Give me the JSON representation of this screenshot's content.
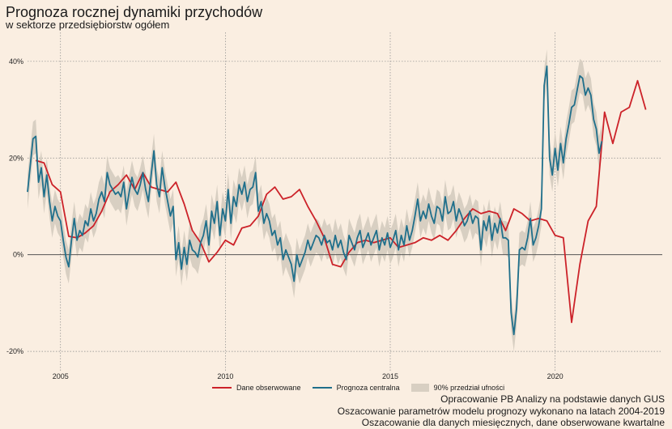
{
  "title": "Prognoza rocznej dynamiki przychodów",
  "subtitle": "w sektorze przedsiębiorstw ogółem",
  "captions": [
    "Opracowanie PB Analizy na podstawie danych GUS",
    "Oszacowanie parametrów modelu prognozy wykonano na latach 2004-2019",
    "Oszacowanie dla danych miesięcznych, dane obserwowane kwartalne"
  ],
  "colors": {
    "background": "#faeee1",
    "observed": "#cc2229",
    "forecast": "#1f6f8b",
    "band": "#d8cfc2",
    "grid": "#8a8a8a",
    "zero_line": "#555555"
  },
  "chart_data": {
    "type": "line",
    "x_unit": "year (decimal)",
    "xlim": [
      2004.0,
      2023.25
    ],
    "ylim": [
      -24,
      46
    ],
    "xticks": [
      2005,
      2010,
      2015,
      2020
    ],
    "xtick_labels": [
      "2005",
      "2010",
      "2015",
      "2020"
    ],
    "yticks": [
      -20,
      0,
      20,
      40
    ],
    "ytick_labels": [
      "-20%",
      "0%",
      "20%",
      "40%"
    ],
    "grid": true,
    "legend_position": "bottom-center",
    "legend": [
      {
        "label": "Dane obserwowane",
        "kind": "line",
        "color": "#cc2229"
      },
      {
        "label": "Prognoza centralna",
        "kind": "line",
        "color": "#1f6f8b"
      },
      {
        "label": "90% przedział ufności",
        "kind": "band",
        "color": "#d8cfc2"
      }
    ],
    "series": [
      {
        "name": "Dane obserwowane",
        "x": [
          2004.25,
          2004.5,
          2004.75,
          2005.0,
          2005.25,
          2005.5,
          2005.75,
          2006.0,
          2006.25,
          2006.5,
          2006.75,
          2007.0,
          2007.25,
          2007.5,
          2007.75,
          2008.0,
          2008.25,
          2008.5,
          2008.75,
          2009.0,
          2009.25,
          2009.5,
          2009.75,
          2010.0,
          2010.25,
          2010.5,
          2010.75,
          2011.0,
          2011.25,
          2011.5,
          2011.75,
          2012.0,
          2012.25,
          2012.5,
          2012.75,
          2013.0,
          2013.25,
          2013.5,
          2013.75,
          2014.0,
          2014.25,
          2014.5,
          2014.75,
          2015.0,
          2015.25,
          2015.5,
          2015.75,
          2016.0,
          2016.25,
          2016.5,
          2016.75,
          2017.0,
          2017.25,
          2017.5,
          2017.75,
          2018.0,
          2018.25,
          2018.5,
          2018.75,
          2019.0,
          2019.25,
          2019.5,
          2019.75,
          2020.0,
          2020.25,
          2020.5,
          2020.75,
          2021.0,
          2021.25,
          2021.5,
          2021.75,
          2022.0,
          2022.25,
          2022.5,
          2022.75,
          2023.0
        ],
        "values": [
          19.5,
          19.0,
          14.5,
          13.0,
          3.8,
          3.5,
          4.5,
          6.0,
          9.0,
          13.0,
          14.5,
          16.5,
          13.5,
          17.0,
          14.0,
          13.5,
          13.0,
          15.0,
          10.5,
          5.0,
          2.5,
          -1.5,
          0.5,
          3.0,
          2.0,
          5.5,
          6.0,
          8.0,
          12.5,
          14.0,
          11.5,
          12.0,
          13.5,
          10.0,
          7.0,
          3.5,
          -2.0,
          -2.5,
          0.5,
          2.5,
          3.0,
          2.5,
          3.0,
          3.5,
          1.5,
          2.0,
          2.5,
          3.5,
          3.0,
          4.0,
          3.0,
          5.0,
          7.5,
          9.5,
          8.5,
          9.0,
          8.5,
          5.0,
          9.5,
          8.5,
          7.0,
          7.5,
          7.0,
          4.0,
          3.5,
          -14.0,
          -2.0,
          7.0,
          10.0,
          29.5,
          23.0,
          29.5,
          30.5,
          36.0,
          30.0,
          null
        ]
      },
      {
        "name": "Prognoza centralna",
        "x_start": 2004.0,
        "x_step_months": 1,
        "values": [
          13.0,
          18.5,
          24.0,
          24.5,
          15.0,
          18.0,
          12.0,
          16.5,
          11.0,
          7.0,
          10.0,
          8.0,
          7.0,
          3.0,
          -0.5,
          -2.5,
          3.0,
          7.5,
          3.0,
          5.0,
          4.0,
          7.0,
          6.0,
          9.5,
          7.0,
          8.5,
          11.5,
          13.0,
          11.0,
          17.0,
          14.5,
          13.5,
          12.5,
          13.0,
          12.0,
          15.0,
          9.5,
          13.0,
          16.0,
          13.5,
          12.5,
          14.5,
          17.0,
          13.5,
          11.0,
          16.5,
          21.5,
          14.5,
          12.0,
          18.0,
          14.0,
          11.0,
          8.0,
          10.0,
          -1.0,
          2.5,
          -3.0,
          1.5,
          -2.0,
          3.0,
          1.0,
          0.5,
          -0.5,
          2.5,
          4.0,
          7.0,
          2.0,
          9.0,
          6.5,
          11.0,
          4.0,
          9.5,
          7.0,
          13.5,
          6.5,
          12.0,
          10.0,
          14.5,
          12.5,
          15.0,
          11.0,
          13.5,
          14.0,
          17.0,
          9.0,
          11.0,
          6.5,
          8.5,
          7.0,
          4.0,
          5.0,
          2.0,
          3.5,
          -1.0,
          1.0,
          -0.5,
          -2.0,
          -5.5,
          0.0,
          -2.5,
          -1.0,
          0.5,
          3.0,
          1.0,
          2.5,
          4.0,
          3.5,
          2.0,
          4.0,
          2.5,
          3.0,
          1.0,
          4.0,
          1.5,
          3.0,
          0.5,
          -1.0,
          4.0,
          2.5,
          1.0,
          3.5,
          5.0,
          1.5,
          3.0,
          4.5,
          2.0,
          3.5,
          5.0,
          1.0,
          3.5,
          2.0,
          4.5,
          1.5,
          3.0,
          5.0,
          1.0,
          4.0,
          2.0,
          6.0,
          3.0,
          5.0,
          8.0,
          11.5,
          7.0,
          9.0,
          7.5,
          10.5,
          8.0,
          6.5,
          10.0,
          9.5,
          7.0,
          12.0,
          8.5,
          9.0,
          11.0,
          7.0,
          9.5,
          8.0,
          6.0,
          7.0,
          9.0,
          6.5,
          8.0,
          7.5,
          1.0,
          7.0,
          5.0,
          8.0,
          3.0,
          6.5,
          4.5,
          7.5,
          3.5,
          3.5,
          3.0,
          -12.0,
          -16.5,
          -11.0,
          1.0,
          1.5,
          1.0,
          3.5,
          7.5,
          2.0,
          3.5,
          6.0,
          9.5,
          35.0,
          39.0,
          20.0,
          16.5,
          22.0,
          17.5,
          23.0,
          19.0,
          24.0,
          27.0,
          30.5,
          31.0,
          34.0,
          37.0,
          36.5,
          33.0,
          34.5,
          33.0,
          28.0,
          26.0,
          21.0,
          23.5
        ]
      }
    ],
    "confidence_band": {
      "name": "90% przedział ufności",
      "level": 0.9,
      "half_width_pct_points": 3.5
    }
  }
}
